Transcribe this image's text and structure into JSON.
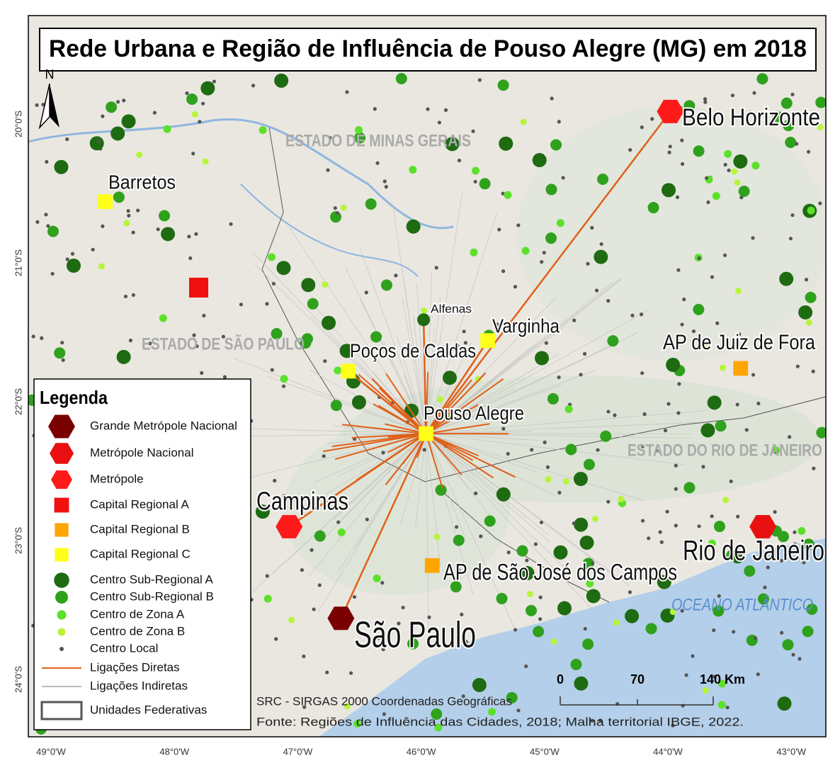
{
  "title": "Rede Urbana e Região de Influência de Pouso Alegre (MG) em 2018",
  "north": "N",
  "state_labels": [
    "ESTADO DE MINAS GERAIS",
    "ESTADO DE SÃO PAULO",
    "ESTADO DO RIO DE JANEIRO"
  ],
  "ocean_label": "OCEANO ATLÂNTICO",
  "cities": [
    {
      "name": "São Paulo",
      "lon": -46.65,
      "lat": -23.56,
      "class": 0
    },
    {
      "name": "Rio de Janeiro",
      "lon": -43.23,
      "lat": -22.9,
      "class": 1
    },
    {
      "name": "Belo Horizonte",
      "lon": -43.98,
      "lat": -19.91,
      "class": 2
    },
    {
      "name": "Campinas",
      "lon": -47.07,
      "lat": -22.9,
      "class": 2
    },
    {
      "name": "AP de Juiz de Fora",
      "lon": -43.41,
      "lat": -21.76,
      "class": 4
    },
    {
      "name": "AP de São José dos Campos",
      "lon": -45.91,
      "lat": -23.18,
      "class": 4
    },
    {
      "name": "Pouso Alegre",
      "lon": -45.96,
      "lat": -22.23,
      "class": 5
    },
    {
      "name": "Varginha",
      "lon": -45.46,
      "lat": -21.56,
      "class": 5
    },
    {
      "name": "Poços de Caldas",
      "lon": -46.59,
      "lat": -21.78,
      "class": 5
    },
    {
      "name": "Barretos",
      "lon": -48.56,
      "lat": -20.56,
      "class": 5
    },
    {
      "name": "Alfenas",
      "lon": -45.98,
      "lat": -21.41,
      "class": 6
    }
  ],
  "legend": {
    "title": "Legenda",
    "items": [
      {
        "label": "Grande Metrópole Nacional",
        "shape": "hexagon",
        "color": "#7a0000"
      },
      {
        "label": "Metrópole Nacional",
        "shape": "hexagon",
        "color": "#e81010"
      },
      {
        "label": "Metrópole",
        "shape": "hexagon",
        "color": "#ff1a1a"
      },
      {
        "label": "Capital Regional A",
        "shape": "square",
        "color": "#f01010"
      },
      {
        "label": "Capital Regional B",
        "shape": "square",
        "color": "#ffa500"
      },
      {
        "label": "Capital Regional C",
        "shape": "square",
        "color": "#ffff1a"
      },
      {
        "label": "Centro Sub-Regional A",
        "shape": "circle",
        "color": "#1e6b12"
      },
      {
        "label": "Centro Sub-Regional B",
        "shape": "circle",
        "color": "#2fa11d"
      },
      {
        "label": "Centro de Zona A",
        "shape": "circle",
        "color": "#5ce02a"
      },
      {
        "label": "Centro de Zona B",
        "shape": "circle",
        "color": "#b6f53a"
      },
      {
        "label": "Centro Local",
        "shape": "dot",
        "color": "#555555"
      },
      {
        "label": "Ligações Diretas",
        "shape": "line",
        "color": "#e0601a"
      },
      {
        "label": "Ligações Indiretas",
        "shape": "line",
        "color": "#bbbbbb"
      },
      {
        "label": "Unidades Federativas",
        "shape": "outline",
        "color": "#555555"
      }
    ]
  },
  "scale_bar": {
    "labels": [
      "0",
      "70",
      "140 Km"
    ]
  },
  "crs": "SRC - SIRGAS 2000 Coordenadas Geográficas",
  "source": "Fonte: Regiões de Influência das Cidades, 2018; Malha territorial IBGE, 2022.",
  "lon_labels": [
    "49°0'W",
    "48°0'W",
    "47°0'W",
    "46°0'W",
    "45°0'W",
    "44°0'W",
    "43°0'W"
  ],
  "lat_labels": [
    "20°0'S",
    "21°0'S",
    "22°0'S",
    "23°0'S",
    "24°0'S"
  ]
}
